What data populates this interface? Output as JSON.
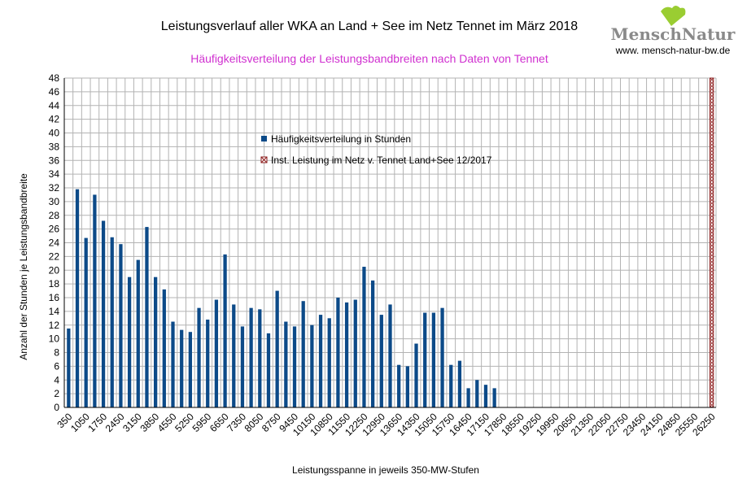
{
  "header": {
    "title": "Leistungsverlauf aller WKA an Land + See im Netz Tennet im März 2018",
    "subtitle": "Häufigkeitsverteilung der Leistungsbandbreiten nach Daten von Tennet"
  },
  "logo": {
    "brand": "MenschNatur",
    "url": "www. mensch-natur-bw.de",
    "leaf_color": "#9acd32"
  },
  "colors": {
    "bar": "#0c4a88",
    "grid": "#b3b3b3",
    "capacity": "#8b1a1a",
    "subtitle": "#d030d0"
  },
  "chart_data": {
    "type": "bar",
    "title": "Leistungsverlauf aller WKA an Land + See im Netz Tennet im März 2018",
    "subtitle": "Häufigkeitsverteilung der Leistungsbandbreiten nach Daten von Tennet",
    "xlabel": "Leistungsspanne in jeweils 350-MW-Stufen",
    "ylabel": "Anzahl der Stunden je Leistungsbandbreite",
    "ylim": [
      0,
      48
    ],
    "ytick_step": 2,
    "grid": true,
    "x_tick_labels": [
      "350",
      "1050",
      "1750",
      "2450",
      "3150",
      "3850",
      "4550",
      "5250",
      "5950",
      "6650",
      "7350",
      "8050",
      "8750",
      "9450",
      "10150",
      "10850",
      "11550",
      "12250",
      "12950",
      "13650",
      "14350",
      "15050",
      "15750",
      "16450",
      "17150",
      "17850",
      "18550",
      "19250",
      "19950",
      "20650",
      "21350",
      "22050",
      "22750",
      "23450",
      "24150",
      "24850",
      "25550",
      "26250"
    ],
    "categories": [
      "350",
      "700",
      "1050",
      "1400",
      "1750",
      "2100",
      "2450",
      "2800",
      "3150",
      "3500",
      "3850",
      "4200",
      "4550",
      "4900",
      "5250",
      "5600",
      "5950",
      "6300",
      "6650",
      "7000",
      "7350",
      "7700",
      "8050",
      "8400",
      "8750",
      "9100",
      "9450",
      "9800",
      "10150",
      "10500",
      "10850",
      "11200",
      "11550",
      "11900",
      "12250",
      "12600",
      "12950",
      "13300",
      "13650",
      "14000",
      "14350",
      "14700",
      "15050",
      "15400",
      "15750",
      "16100",
      "16450",
      "16800",
      "17150",
      "17500",
      "17850",
      "18200",
      "18550",
      "18900",
      "19250",
      "19600",
      "19950",
      "20300",
      "20650",
      "21000",
      "21350",
      "21700",
      "22050",
      "22400",
      "22750",
      "23100",
      "23450",
      "23800",
      "24150",
      "24500",
      "24850",
      "25200",
      "25550",
      "25900",
      "26250"
    ],
    "series": [
      {
        "name": "Häufigkeitsverteilung in Stunden",
        "values": [
          11.5,
          31.8,
          24.7,
          31,
          27.2,
          24.8,
          23.8,
          19,
          21.5,
          26.3,
          19,
          17.2,
          12.5,
          11.3,
          11,
          14.5,
          12.8,
          15.7,
          22.3,
          15,
          11.8,
          14.5,
          14.3,
          10.8,
          17,
          12.5,
          11.8,
          15.5,
          12,
          13.5,
          13,
          16,
          15.3,
          15.7,
          20.5,
          18.5,
          13.5,
          15,
          6.2,
          6,
          9.3,
          13.8,
          13.8,
          14.5,
          6.2,
          6.8,
          2.8,
          4,
          3.3,
          2.8,
          0,
          0,
          0,
          0,
          0,
          0,
          0,
          0,
          0,
          0,
          0,
          0,
          0,
          0,
          0,
          0,
          0,
          0,
          0,
          0,
          0,
          0,
          0,
          0,
          0
        ]
      },
      {
        "name": "Inst. Leistung im Netz v. Tennet  Land+See 12/2017",
        "x_category": "26250",
        "value": 48
      }
    ]
  }
}
